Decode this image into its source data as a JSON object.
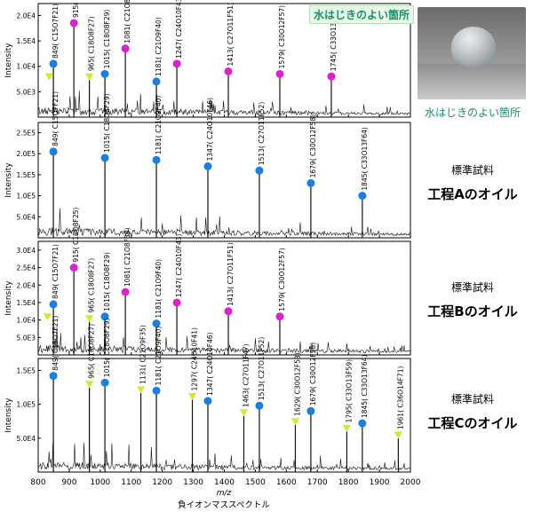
{
  "chart_data": [
    {
      "type": "line",
      "panel": "p1",
      "ylabel": "Intensity",
      "yticks": [
        "5.0E3",
        "1.0E4",
        "1.5E4",
        "2.0E4"
      ],
      "ylim": [
        0,
        22000
      ],
      "xlim": [
        800,
        2000
      ],
      "annotation": "水はじきのよい箇所",
      "peaks": [
        {
          "mz": 849,
          "label": "849( C15O7F21)",
          "marker": "circle-blue",
          "y": 10500
        },
        {
          "mz": 915,
          "label": "915( C18O8F25)",
          "marker": "circle-magenta",
          "y": 18500
        },
        {
          "mz": 965,
          "label": "965( C18O8F27)",
          "marker": "triangle-yellow",
          "y": 8000
        },
        {
          "mz": 1015,
          "label": "1015( C18O8F29)",
          "marker": "circle-blue",
          "y": 8500
        },
        {
          "mz": 1081,
          "label": "1081( C21O8F33)",
          "marker": "circle-magenta",
          "y": 13500
        },
        {
          "mz": 1181,
          "label": "1181( C21O9F40)",
          "marker": "circle-blue",
          "y": 7000
        },
        {
          "mz": 1247,
          "label": "1247( C24O10F43)",
          "marker": "circle-magenta",
          "y": 10500
        },
        {
          "mz": 1413,
          "label": "1413( C27O11F51)",
          "marker": "circle-magenta",
          "y": 9000
        },
        {
          "mz": 1579,
          "label": "1579( C30O12F57)",
          "marker": "circle-magenta",
          "y": 8500
        },
        {
          "mz": 1745,
          "label": "1745( C33O13F63)",
          "marker": "circle-magenta",
          "y": 8000
        }
      ],
      "extra_markers": [
        {
          "mz": 835,
          "marker": "triangle-yellow",
          "y": 8000
        }
      ]
    },
    {
      "type": "line",
      "panel": "p2",
      "ylabel": "Intensity",
      "yticks": [
        "5.0E4",
        "1.0E5",
        "1.5E5",
        "2.0E5",
        "2.5E5"
      ],
      "ylim": [
        0,
        270000
      ],
      "xlim": [
        800,
        2000
      ],
      "peaks": [
        {
          "mz": 849,
          "label": "849( C15O7F21)",
          "marker": "circle-blue",
          "y": 205000
        },
        {
          "mz": 1015,
          "label": "1015( C18O8F29)",
          "marker": "circle-blue",
          "y": 190000
        },
        {
          "mz": 1181,
          "label": "1181( C21O9F40)",
          "marker": "circle-blue",
          "y": 185000
        },
        {
          "mz": 1347,
          "label": "1347( C24O10F46)",
          "marker": "circle-blue",
          "y": 170000
        },
        {
          "mz": 1513,
          "label": "1513( C27O11F52)",
          "marker": "circle-blue",
          "y": 160000
        },
        {
          "mz": 1679,
          "label": "1679( C30O12F58)",
          "marker": "circle-blue",
          "y": 130000
        },
        {
          "mz": 1845,
          "label": "1845( C33O13F64)",
          "marker": "circle-blue",
          "y": 100000
        }
      ],
      "extra_markers": []
    },
    {
      "type": "line",
      "panel": "p3",
      "ylabel": "Intensity",
      "yticks": [
        "5.0E3",
        "1.0E4",
        "1.5E4",
        "2.0E4",
        "2.5E4",
        "3.0E4"
      ],
      "ylim": [
        0,
        32000
      ],
      "xlim": [
        800,
        2000
      ],
      "peaks": [
        {
          "mz": 849,
          "label": "849( C15O7F21)",
          "marker": "circle-blue",
          "y": 14500
        },
        {
          "mz": 915,
          "label": "915( C18O8F25)",
          "marker": "circle-magenta",
          "y": 25000
        },
        {
          "mz": 965,
          "label": "965( C18O8F27)",
          "marker": "triangle-yellow",
          "y": 10500
        },
        {
          "mz": 1015,
          "label": "1015( C18O8F29)",
          "marker": "circle-blue",
          "y": 11000
        },
        {
          "mz": 1081,
          "label": "1081( C21O8F33)",
          "marker": "circle-magenta",
          "y": 18000
        },
        {
          "mz": 1181,
          "label": "1181( C21O9F40)",
          "marker": "circle-blue",
          "y": 9000
        },
        {
          "mz": 1247,
          "label": "1247( C24O10F43)",
          "marker": "circle-magenta",
          "y": 15000
        },
        {
          "mz": 1413,
          "label": "1413( C27O11F51)",
          "marker": "circle-magenta",
          "y": 12500
        },
        {
          "mz": 1579,
          "label": "1579( C30O12F57)",
          "marker": "circle-magenta",
          "y": 11000
        }
      ],
      "extra_markers": [
        {
          "mz": 830,
          "marker": "triangle-yellow",
          "y": 11000
        }
      ]
    },
    {
      "type": "line",
      "panel": "p4",
      "ylabel": "Intensity",
      "yticks": [
        "5.0E4",
        "1.0E5",
        "1.5E5"
      ],
      "ylim": [
        0,
        165000
      ],
      "xlim": [
        800,
        2000
      ],
      "peaks": [
        {
          "mz": 849,
          "label": "849( C15O7F21)",
          "marker": "circle-blue",
          "y": 142000
        },
        {
          "mz": 965,
          "label": "965( C18O8F27)",
          "marker": "triangle-yellow",
          "y": 130000
        },
        {
          "mz": 1015,
          "label": "1015( C18O8F29)",
          "marker": "circle-blue",
          "y": 132000
        },
        {
          "mz": 1131,
          "label": "1131( C21O9F35)",
          "marker": "triangle-yellow",
          "y": 122000
        },
        {
          "mz": 1181,
          "label": "1181( C21O9F40)",
          "marker": "circle-blue",
          "y": 120000
        },
        {
          "mz": 1297,
          "label": "1297( C24O10F41)",
          "marker": "triangle-yellow",
          "y": 112000
        },
        {
          "mz": 1347,
          "label": "1347( C24O10F46)",
          "marker": "circle-blue",
          "y": 105000
        },
        {
          "mz": 1463,
          "label": "1463( C27O11F47)",
          "marker": "triangle-yellow",
          "y": 88000
        },
        {
          "mz": 1513,
          "label": "1513( C27O11F52)",
          "marker": "circle-blue",
          "y": 98000
        },
        {
          "mz": 1629,
          "label": "1629( C30O12F53)",
          "marker": "triangle-yellow",
          "y": 75000
        },
        {
          "mz": 1679,
          "label": "1679( C30O12F58)",
          "marker": "circle-blue",
          "y": 90000
        },
        {
          "mz": 1795,
          "label": "1795( C33O13F59)",
          "marker": "triangle-yellow",
          "y": 65000
        },
        {
          "mz": 1845,
          "label": "1845( C33O13F64)",
          "marker": "circle-blue",
          "y": 72000
        },
        {
          "mz": 1961,
          "label": "1961( C36O14F71)",
          "marker": "triangle-yellow",
          "y": 55000
        }
      ],
      "extra_markers": []
    }
  ],
  "x_axis": {
    "ticks": [
      "800",
      "900",
      "1000",
      "1100",
      "1200",
      "1300",
      "1400",
      "1500",
      "1600",
      "1700",
      "1800",
      "1900",
      "2000"
    ],
    "unit_label": "m/z",
    "caption": "負イオンマススペクトル"
  },
  "photo": {
    "caption": "水はじきのよい箇所"
  },
  "side_labels": [
    {
      "sub": "標準試料",
      "main": "工程Aのオイル"
    },
    {
      "sub": "標準試料",
      "main": "工程Bのオイル"
    },
    {
      "sub": "標準試料",
      "main": "工程Cのオイル"
    }
  ],
  "colors": {
    "blue": "#1a7fe0",
    "magenta": "#e020d0",
    "yellow": "#ccee22",
    "axis": "#000000",
    "trace": "#111111"
  }
}
